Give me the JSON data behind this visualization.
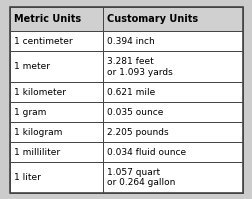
{
  "col_headers": [
    "Metric Units",
    "Customary Units"
  ],
  "rows": [
    [
      "1 centimeter",
      "0.394 inch"
    ],
    [
      "1 meter",
      "3.281 feet\nor 1.093 yards"
    ],
    [
      "1 kilometer",
      "0.621 mile"
    ],
    [
      "1 gram",
      "0.035 ounce"
    ],
    [
      "1 kilogram",
      "2.205 pounds"
    ],
    [
      "1 milliliter",
      "0.034 fluid ounce"
    ],
    [
      "1 liter",
      "1.057 quart\nor 0.264 gallon"
    ]
  ],
  "header_bg": "#d0d0d0",
  "row_bg": "#ffffff",
  "border_color": "#444444",
  "text_color": "#000000",
  "header_fontsize": 7.0,
  "cell_fontsize": 6.5,
  "fig_bg": "#cccccc"
}
